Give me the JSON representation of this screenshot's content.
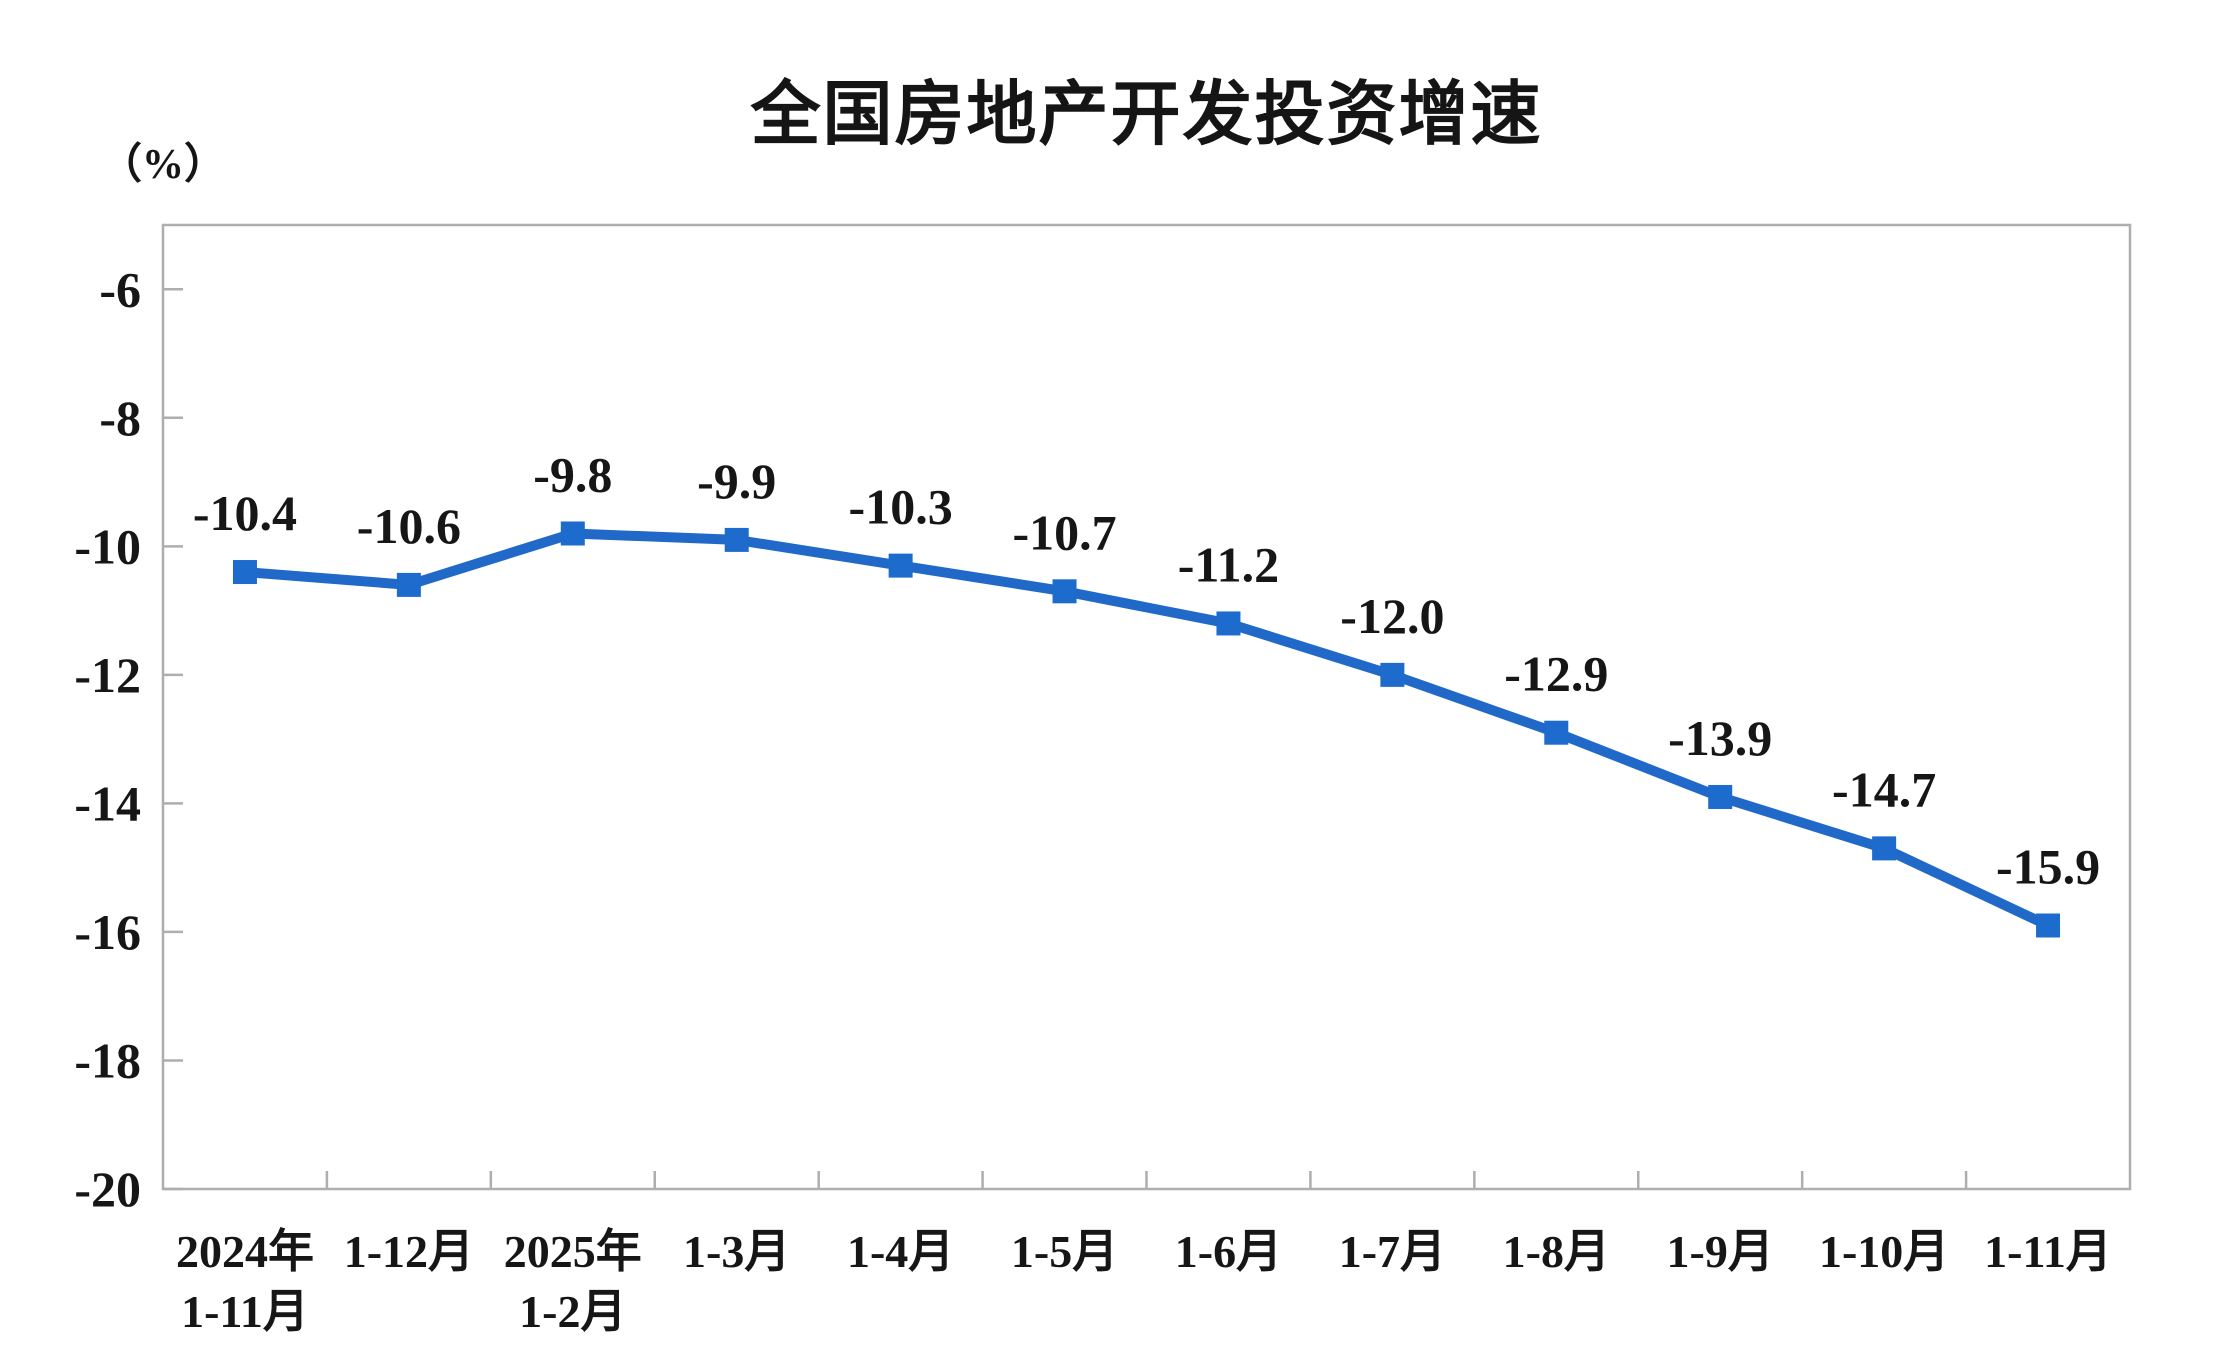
{
  "chart_data": {
    "type": "line",
    "title": "全国房地产开发投资增速",
    "unit_label": "（%）",
    "categories": [
      [
        "2024年",
        "1-11月"
      ],
      [
        "1-12月"
      ],
      [
        "2025年",
        "1-2月"
      ],
      [
        "1-3月"
      ],
      [
        "1-4月"
      ],
      [
        "1-5月"
      ],
      [
        "1-6月"
      ],
      [
        "1-7月"
      ],
      [
        "1-8月"
      ],
      [
        "1-9月"
      ],
      [
        "1-10月"
      ],
      [
        "1-11月"
      ]
    ],
    "values": [
      -10.4,
      -10.6,
      -9.8,
      -9.9,
      -10.3,
      -10.7,
      -11.2,
      -12.0,
      -12.9,
      -13.9,
      -14.7,
      -15.9
    ],
    "data_labels": [
      "-10.4",
      "-10.6",
      "-9.8",
      "-9.9",
      "-10.3",
      "-10.7",
      "-11.2",
      "-12.0",
      "-12.9",
      "-13.9",
      "-14.7",
      "-15.9"
    ],
    "ytick_labels": [
      "-6",
      "-8",
      "-10",
      "-12",
      "-14",
      "-16",
      "-18",
      "-20"
    ],
    "yticks": [
      -6,
      -8,
      -10,
      -12,
      -14,
      -16,
      -18,
      -20
    ],
    "ylim": [
      -20,
      -5
    ],
    "grid": false,
    "legend_position": "none",
    "marker": "square",
    "line_color": "#2169c8",
    "marker_color": "#1d6bcd",
    "axis_color": "#aeaeae",
    "text_color": "#161616"
  }
}
